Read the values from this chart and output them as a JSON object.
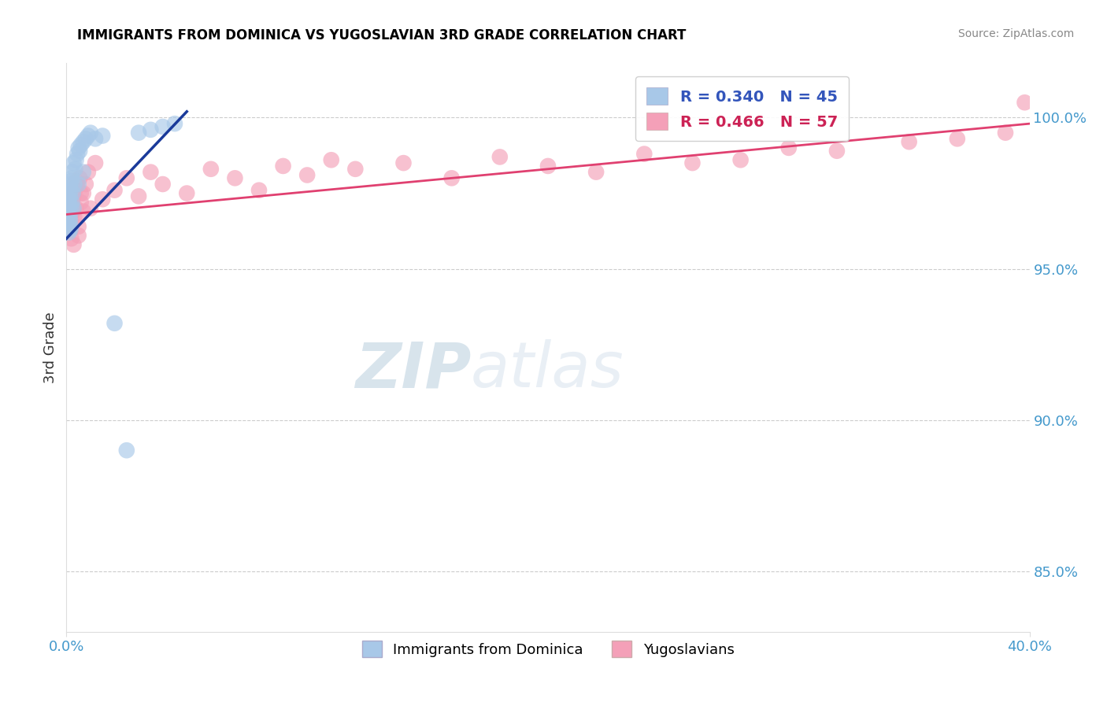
{
  "title": "IMMIGRANTS FROM DOMINICA VS YUGOSLAVIAN 3RD GRADE CORRELATION CHART",
  "source": "Source: ZipAtlas.com",
  "ylabel": "3rd Grade",
  "blue_label": "Immigrants from Dominica",
  "pink_label": "Yugoslavians",
  "blue_R": 0.34,
  "blue_N": 45,
  "pink_R": 0.466,
  "pink_N": 57,
  "blue_color": "#A8C8E8",
  "pink_color": "#F4A0B8",
  "blue_line_color": "#1A3A9A",
  "pink_line_color": "#E04070",
  "xmin": 0.0,
  "xmax": 40.0,
  "ymin": 83.0,
  "ymax": 101.8,
  "yticks": [
    85.0,
    90.0,
    95.0,
    100.0
  ],
  "ytick_labels": [
    "85.0%",
    "90.0%",
    "95.0%",
    "100.0%"
  ],
  "blue_x": [
    0.05,
    0.07,
    0.08,
    0.09,
    0.1,
    0.1,
    0.11,
    0.12,
    0.13,
    0.14,
    0.15,
    0.15,
    0.16,
    0.17,
    0.18,
    0.19,
    0.2,
    0.21,
    0.22,
    0.23,
    0.25,
    0.27,
    0.3,
    0.33,
    0.36,
    0.4,
    0.45,
    0.5,
    0.55,
    0.6,
    0.7,
    0.8,
    0.9,
    1.0,
    1.2,
    1.5,
    2.0,
    2.5,
    3.0,
    3.5,
    4.0,
    4.5,
    0.3,
    0.5,
    0.7
  ],
  "blue_y": [
    97.2,
    96.8,
    97.5,
    96.5,
    97.0,
    96.2,
    97.3,
    96.9,
    97.1,
    96.7,
    97.4,
    96.6,
    97.8,
    96.3,
    97.6,
    96.4,
    97.9,
    97.0,
    98.0,
    97.2,
    98.2,
    97.5,
    98.5,
    97.8,
    98.3,
    98.6,
    98.8,
    99.0,
    98.9,
    99.1,
    99.2,
    99.3,
    99.4,
    99.5,
    99.3,
    99.4,
    93.2,
    89.0,
    99.5,
    99.6,
    99.7,
    99.8,
    97.0,
    97.8,
    98.2
  ],
  "pink_x": [
    0.08,
    0.1,
    0.12,
    0.14,
    0.16,
    0.18,
    0.2,
    0.22,
    0.25,
    0.28,
    0.3,
    0.33,
    0.36,
    0.4,
    0.45,
    0.5,
    0.55,
    0.6,
    0.7,
    0.8,
    0.9,
    1.0,
    1.2,
    1.5,
    2.0,
    2.5,
    3.0,
    3.5,
    4.0,
    5.0,
    6.0,
    7.0,
    8.0,
    9.0,
    10.0,
    11.0,
    12.0,
    14.0,
    16.0,
    18.0,
    20.0,
    22.0,
    24.0,
    26.0,
    28.0,
    30.0,
    32.0,
    35.0,
    37.0,
    39.0,
    0.2,
    0.3,
    0.4,
    0.5,
    0.6,
    0.7,
    39.8
  ],
  "pink_y": [
    97.0,
    96.5,
    97.2,
    96.8,
    97.3,
    96.3,
    97.5,
    96.6,
    97.1,
    96.9,
    97.4,
    96.7,
    97.6,
    97.0,
    97.8,
    96.4,
    98.0,
    97.2,
    97.5,
    97.8,
    98.2,
    97.0,
    98.5,
    97.3,
    97.6,
    98.0,
    97.4,
    98.2,
    97.8,
    97.5,
    98.3,
    98.0,
    97.6,
    98.4,
    98.1,
    98.6,
    98.3,
    98.5,
    98.0,
    98.7,
    98.4,
    98.2,
    98.8,
    98.5,
    98.6,
    99.0,
    98.9,
    99.2,
    99.3,
    99.5,
    96.0,
    95.8,
    97.9,
    96.1,
    97.5,
    96.9,
    100.5
  ],
  "blue_trend_x": [
    0.0,
    5.0
  ],
  "blue_trend_y": [
    96.0,
    100.2
  ],
  "pink_trend_x": [
    0.0,
    40.0
  ],
  "pink_trend_y": [
    96.8,
    99.8
  ]
}
